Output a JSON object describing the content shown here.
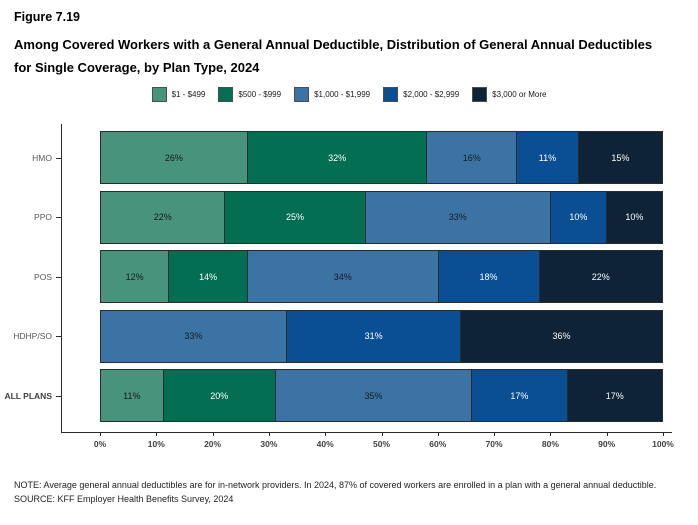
{
  "header": {
    "figure_number": "Figure 7.19",
    "title": "Among Covered Workers with a General Annual Deductible, Distribution of General Annual Deductibles for Single Coverage, by Plan Type, 2024"
  },
  "chart_data": {
    "type": "bar",
    "stacked": true,
    "orientation": "horizontal",
    "categories": [
      {
        "label": "HMO",
        "bold": false
      },
      {
        "label": "PPO",
        "bold": false
      },
      {
        "label": "POS",
        "bold": false
      },
      {
        "label": "HDHP/SO",
        "bold": false
      },
      {
        "label": "ALL PLANS",
        "bold": true
      }
    ],
    "series": [
      {
        "name": "$1 - $499",
        "color": "#47937C",
        "text_color": "#1a1a1a",
        "values": [
          26,
          22,
          12,
          0,
          11
        ]
      },
      {
        "name": "$500 - $999",
        "color": "#036E52",
        "text_color": "#ffffff",
        "values": [
          32,
          25,
          14,
          0,
          20
        ]
      },
      {
        "name": "$1,000 - $1,999",
        "color": "#3B73A5",
        "text_color": "#1a1a1a",
        "values": [
          16,
          33,
          34,
          33,
          35
        ]
      },
      {
        "name": "$2,000 - $2,999",
        "color": "#0A4E94",
        "text_color": "#ffffff",
        "values": [
          11,
          10,
          18,
          31,
          17
        ]
      },
      {
        "name": "$3,000 or More",
        "color": "#0E2337",
        "text_color": "#ffffff",
        "values": [
          15,
          10,
          22,
          36,
          17
        ]
      }
    ],
    "value_suffix": "%",
    "xlim": [
      0,
      100
    ],
    "x_ticks": [
      "0%",
      "10%",
      "20%",
      "30%",
      "40%",
      "50%",
      "60%",
      "70%",
      "80%",
      "90%",
      "100%"
    ],
    "grid": false,
    "legend_position": "top-center"
  },
  "footer": {
    "note": "NOTE: Average general annual deductibles are for in-network providers.  In 2024, 87% of covered workers are enrolled in a plan with a general annual deductible.",
    "source": "SOURCE: KFF Employer Health Benefits Survey, 2024"
  }
}
